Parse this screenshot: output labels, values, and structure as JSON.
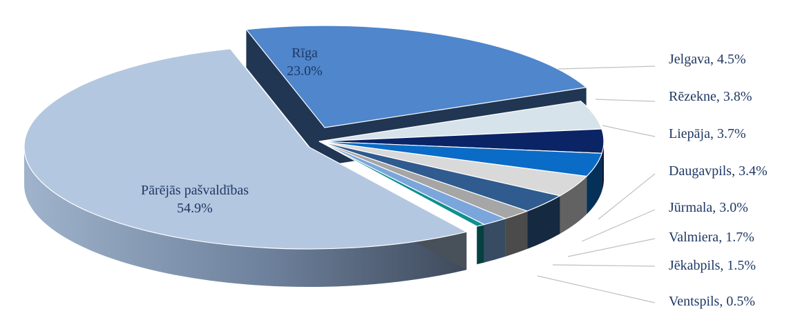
{
  "chart_data": {
    "type": "pie",
    "style": "3d-exploded",
    "title": "",
    "slices": [
      {
        "name": "Rīga",
        "value": 23.0,
        "label_inside": true,
        "color": "#4f86cc"
      },
      {
        "name": "Jelgava",
        "value": 4.5,
        "color": "#d7e3ea"
      },
      {
        "name": "Rēzekne",
        "value": 3.8,
        "color": "#0a2466"
      },
      {
        "name": "Liepāja",
        "value": 3.7,
        "color": "#0a6cc6"
      },
      {
        "name": "Daugavpils",
        "value": 3.4,
        "color": "#d9d9d9"
      },
      {
        "name": "Jūrmala",
        "value": 3.0,
        "color": "#2f5b8f"
      },
      {
        "name": "Valmiera",
        "value": 1.7,
        "color": "#a6a6a6"
      },
      {
        "name": "Jēkabpils",
        "value": 1.5,
        "color": "#7aa6dc"
      },
      {
        "name": "Ventspils",
        "value": 0.5,
        "color": "#108f8f"
      },
      {
        "name": "Pārējās pašvaldības",
        "value": 54.9,
        "label_inside": true,
        "color": "#b4c7e0"
      }
    ],
    "labels": {
      "Rīga": {
        "line1": "Rīga",
        "line2": "23.0%"
      },
      "Pārējās pašvaldības": {
        "line1": "Pārējās pašvaldības",
        "line2": "54.9%"
      },
      "Jelgava": "Jelgava, 4.5%",
      "Rēzekne": "Rēzekne, 3.8%",
      "Liepāja": "Liepāja, 3.7%",
      "Daugavpils": "Daugavpils, 3.4%",
      "Jūrmala": "Jūrmala, 3.0%",
      "Valmiera": "Valmiera, 1.7%",
      "Jēkabpils": "Jēkabpils, 1.5%",
      "Ventspils": "Ventspils, 0.5%"
    },
    "leader_line_color": "#bfbfbf"
  }
}
